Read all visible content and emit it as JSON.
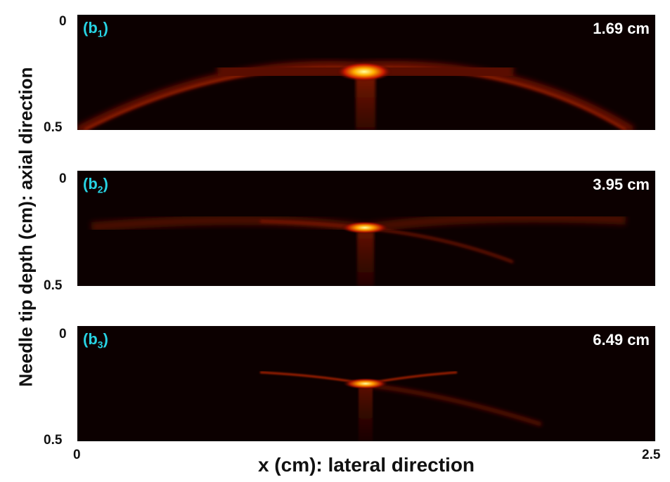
{
  "figure": {
    "ylabel": "Needle tip depth (cm): axial direction",
    "xlabel": "x (cm): lateral direction",
    "x_ticks": [
      "0",
      "2.5"
    ],
    "y_ticks": [
      "0",
      "0.5"
    ]
  },
  "panels": [
    {
      "tag_main": "(b",
      "tag_sub": "1",
      "tag_end": ")",
      "depth_label": "1.69 cm"
    },
    {
      "tag_main": "(b",
      "tag_sub": "2",
      "tag_end": ")",
      "depth_label": "3.95 cm"
    },
    {
      "tag_main": "(b",
      "tag_sub": "3",
      "tag_end": ")",
      "depth_label": "6.49 cm"
    }
  ],
  "colors": {
    "tag": "#27d3e3",
    "depth_label": "#ffffff",
    "background": "#0c0000"
  }
}
